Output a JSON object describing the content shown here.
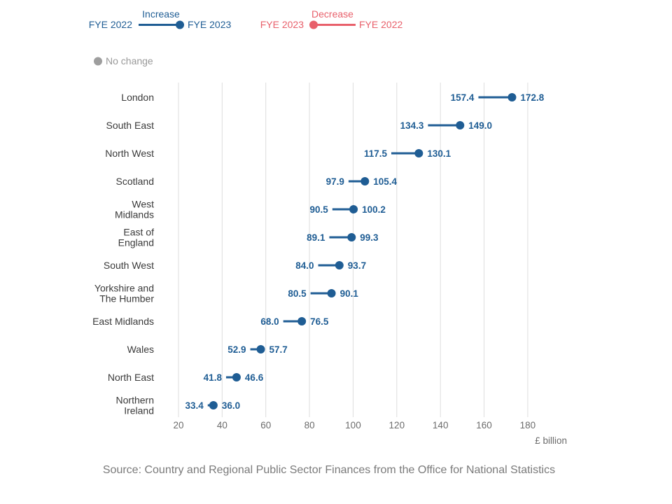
{
  "legend": {
    "increase_label": "Increase",
    "decrease_label": "Decrease",
    "increase_from": "FYE 2022",
    "increase_to": "FYE 2023",
    "decrease_from": "FYE 2023",
    "decrease_to": "FYE 2022",
    "no_change_label": "No change"
  },
  "colors": {
    "increase": "#1f5d94",
    "decrease": "#e8606b",
    "no_change": "#9e9e9e",
    "grid": "#dddddd"
  },
  "source": "Source: Country and Regional Public Sector Finances from the Office for National Statistics",
  "chart_data": {
    "type": "dumbbell",
    "xlabel": "£ billion",
    "xlim": [
      0,
      190
    ],
    "xticks": [
      20,
      40,
      60,
      80,
      100,
      120,
      140,
      160,
      180
    ],
    "grid": true,
    "legend_position": "top-left",
    "series": [
      {
        "name": "FYE 2022",
        "values": [
          157.4,
          134.3,
          117.5,
          97.9,
          90.5,
          89.1,
          84.0,
          80.5,
          68.0,
          52.9,
          41.8,
          33.4
        ]
      },
      {
        "name": "FYE 2023",
        "values": [
          172.8,
          149.0,
          130.1,
          105.4,
          100.2,
          99.3,
          93.7,
          90.1,
          76.5,
          57.7,
          46.6,
          36.0
        ]
      }
    ],
    "categories": [
      [
        "London"
      ],
      [
        "South East"
      ],
      [
        "North West"
      ],
      [
        "Scotland"
      ],
      [
        "West",
        "Midlands"
      ],
      [
        "East of",
        "England"
      ],
      [
        "South West"
      ],
      [
        "Yorkshire and",
        "The Humber"
      ],
      [
        "East Midlands"
      ],
      [
        "Wales"
      ],
      [
        "North East"
      ],
      [
        "Northern",
        "Ireland"
      ]
    ],
    "value_labels_2022": [
      "157.4",
      "134.3",
      "117.5",
      "97.9",
      "90.5",
      "89.1",
      "84.0",
      "80.5",
      "68.0",
      "52.9",
      "41.8",
      "33.4"
    ],
    "value_labels_2023": [
      "172.8",
      "149.0",
      "130.1",
      "105.4",
      "100.2",
      "99.3",
      "93.7",
      "90.1",
      "76.5",
      "57.7",
      "46.6",
      "36.0"
    ]
  }
}
